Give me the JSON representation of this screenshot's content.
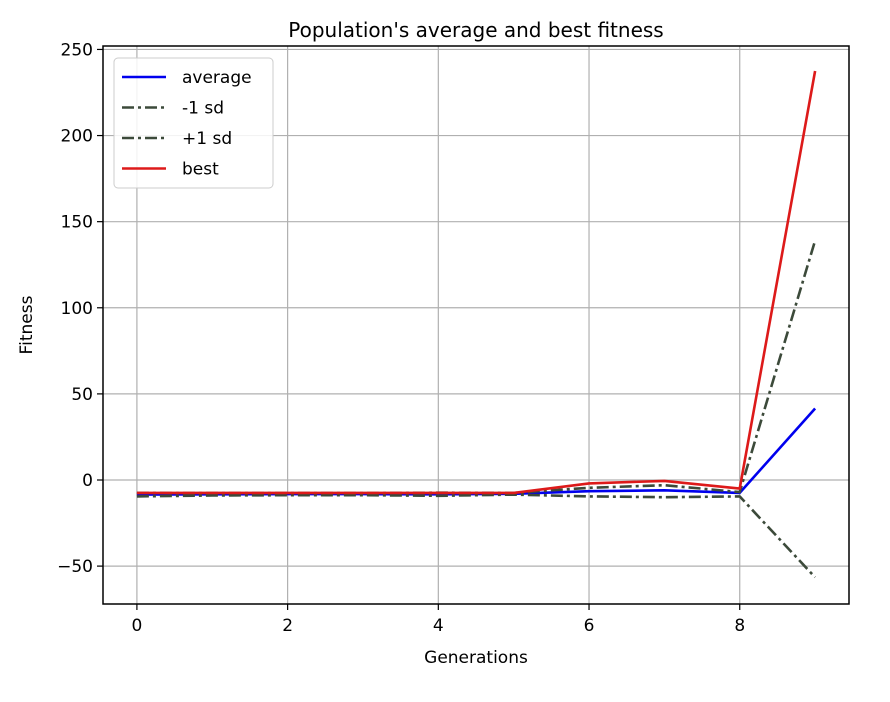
{
  "chart_data": {
    "type": "line",
    "title": "Population's average and best fitness",
    "xlabel": "Generations",
    "ylabel": "Fitness",
    "xlim": [
      -0.45,
      9.45
    ],
    "ylim": [
      -72,
      252
    ],
    "xticks": [
      0,
      2,
      4,
      6,
      8
    ],
    "yticks": [
      -50,
      0,
      50,
      100,
      150,
      200,
      250
    ],
    "xtick_labels": [
      "0",
      "2",
      "4",
      "6",
      "8"
    ],
    "ytick_labels": [
      "−50",
      "0",
      "50",
      "100",
      "150",
      "200",
      "250"
    ],
    "grid": true,
    "legend_position": "upper-left",
    "x": [
      0,
      1,
      2,
      3,
      4,
      5,
      6,
      7,
      8,
      9
    ],
    "series": [
      {
        "name": "average",
        "color": "#0000ee",
        "dash": "solid",
        "values": [
          -8.5,
          -8.3,
          -8.2,
          -8.2,
          -8.3,
          -8.0,
          -6.5,
          -6.0,
          -7.5,
          41.5
        ]
      },
      {
        "name": "-1 sd",
        "color": "#3c4a3a",
        "dash": "dashdot",
        "values": [
          -9.5,
          -9.0,
          -8.8,
          -8.8,
          -9.2,
          -8.5,
          -9.5,
          -10.0,
          -9.5,
          -56.5
        ]
      },
      {
        "name": "+1 sd",
        "color": "#3c4a3a",
        "dash": "dashdot",
        "values": [
          -7.5,
          -7.6,
          -7.6,
          -7.6,
          -7.4,
          -7.5,
          -4.5,
          -3.0,
          -7.0,
          139.0
        ]
      },
      {
        "name": "best",
        "color": "#dd1a1a",
        "dash": "solid",
        "values": [
          -7.5,
          -7.5,
          -7.5,
          -7.5,
          -7.5,
          -7.5,
          -2.0,
          -0.5,
          -5.0,
          237.5
        ]
      }
    ]
  }
}
